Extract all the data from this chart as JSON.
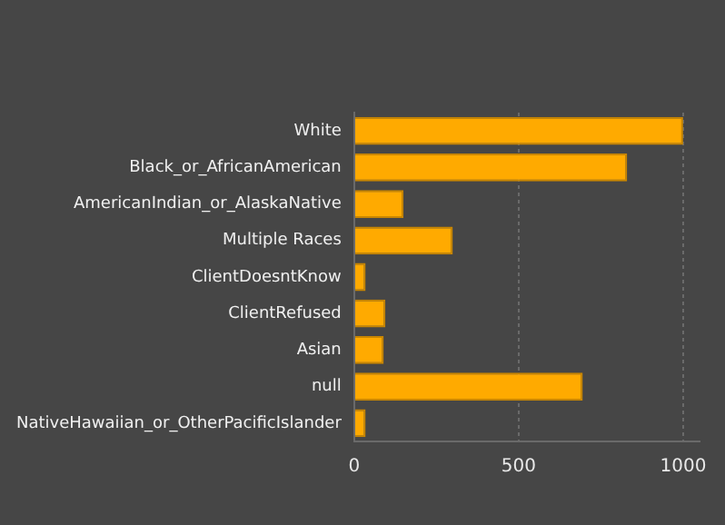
{
  "chart_data": {
    "type": "bar",
    "orientation": "horizontal",
    "categories": [
      "White",
      "Black_or_AfricanAmerican",
      "AmericanIndian_or_AlaskaNative",
      "Multiple Races",
      "ClientDoesntKnow",
      "ClientRefused",
      "Asian",
      "null",
      "NativeHawaiian_or_OtherPacificIslander"
    ],
    "values": [
      1000,
      830,
      150,
      300,
      35,
      95,
      90,
      695,
      35
    ],
    "color": "#ffaa00",
    "xlim": [
      0,
      1050
    ],
    "xticks": [
      0,
      500,
      1000
    ],
    "grid": "x",
    "legend": false
  }
}
